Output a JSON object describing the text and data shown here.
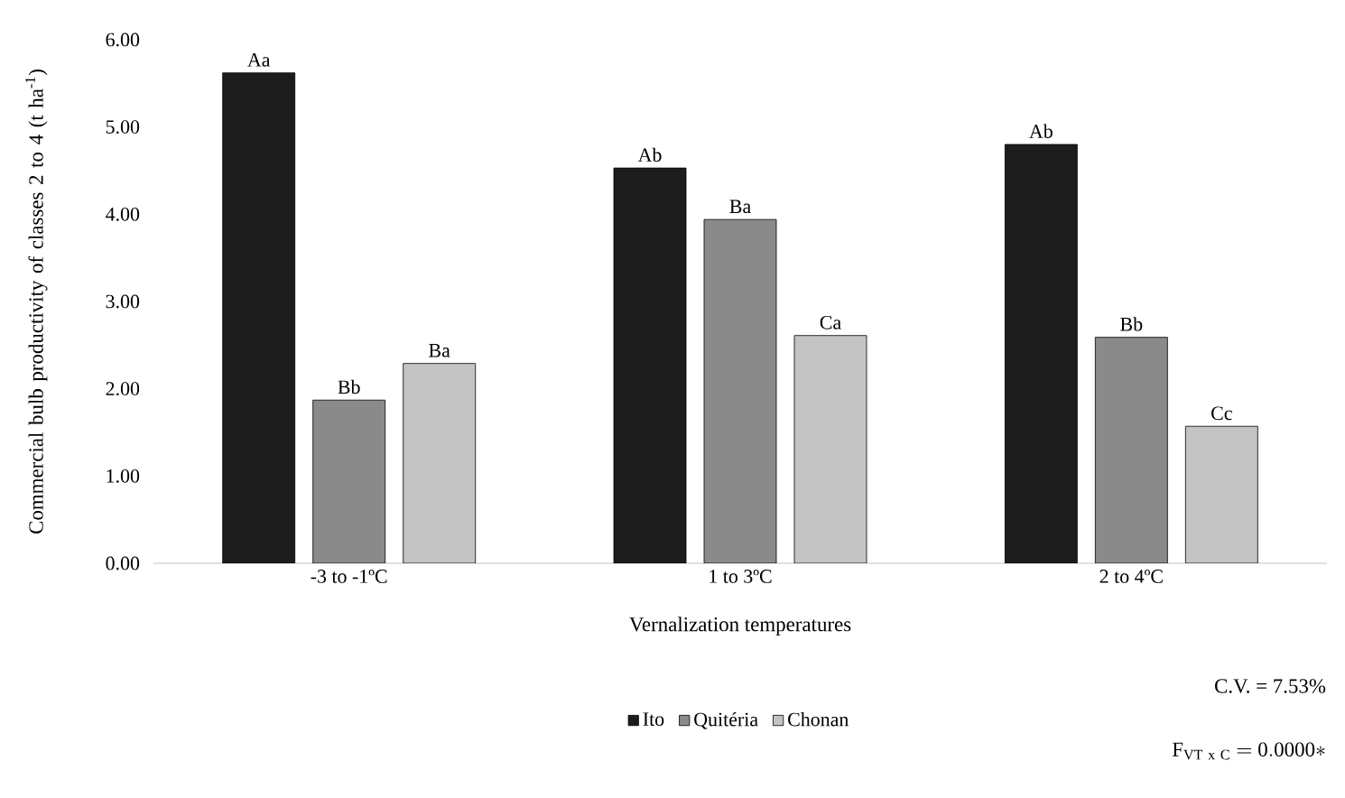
{
  "chart_data": {
    "type": "bar",
    "xlabel": "Vernalization temperatures",
    "ylabel": "Commercial bulb productivity of classes 2 to 4 (t ha$^{-1}$)",
    "categories": [
      "-3 to -1ºC",
      "1 to 3ºC",
      "2 to 4ºC"
    ],
    "series": [
      {
        "name": "Ito",
        "color": "#1c1c1c",
        "values": [
          5.62,
          4.53,
          4.8
        ],
        "value_labels": [
          "Aa",
          "Ab",
          "Ab"
        ]
      },
      {
        "name": "Quitéria",
        "color": "#8a8a8a",
        "values": [
          1.87,
          3.94,
          2.59
        ],
        "value_labels": [
          "Bb",
          "Ba",
          "Bb"
        ]
      },
      {
        "name": "Chonan",
        "color": "#c4c4c4",
        "values": [
          2.29,
          2.61,
          1.57
        ],
        "value_labels": [
          "Ba",
          "Ca",
          "Cc"
        ]
      }
    ],
    "ylim": [
      0,
      6
    ],
    "yticks": [
      {
        "value": 0,
        "label": "0.00"
      },
      {
        "value": 1,
        "label": "1.00"
      },
      {
        "value": 2,
        "label": "2.00"
      },
      {
        "value": 3,
        "label": "3.00"
      },
      {
        "value": 4,
        "label": "4.00"
      },
      {
        "value": 5,
        "label": "5.00"
      },
      {
        "value": 6,
        "label": "6.00"
      }
    ],
    "legend": "bottom",
    "annotations": [
      "C.V. = 7.53%",
      "\\mathrm{F}_{\\mathrm{VT\\ x\\ C}}\\mathrm{\\ {=}\\ 0.0000{*}}"
    ]
  }
}
